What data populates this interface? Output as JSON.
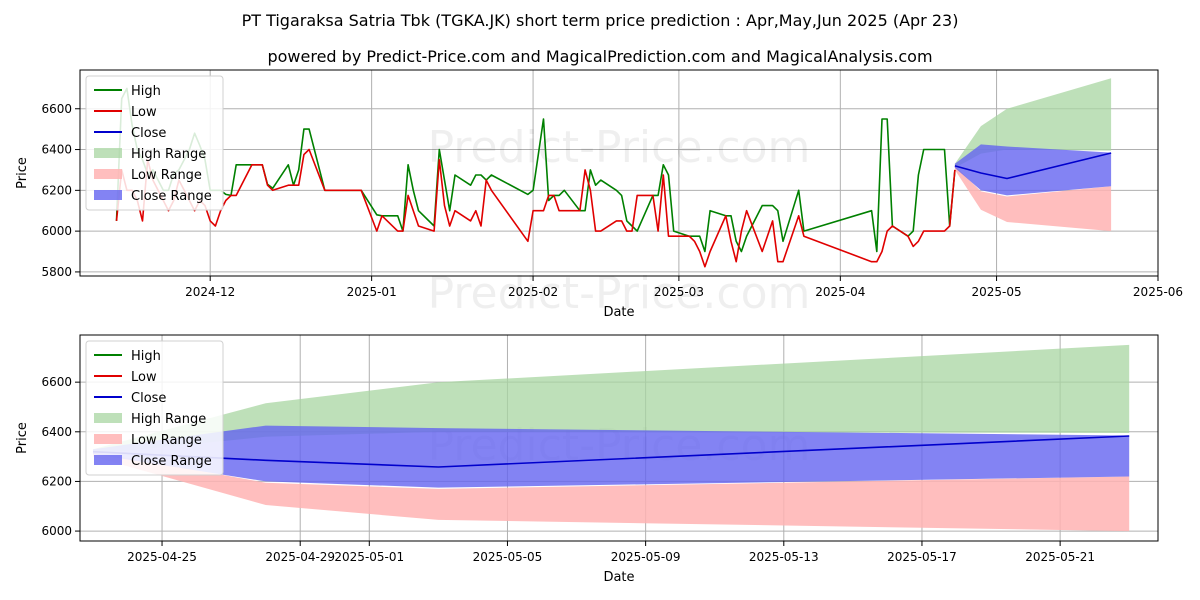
{
  "title": "PT Tigaraksa Satria Tbk (TGKA.JK) short term price prediction : Apr,May,Jun 2025 (Apr 23)",
  "subtitle": "powered by Predict-Price.com and MagicalPrediction.com and MagicalAnalysis.com",
  "watermark": "Predict-Price.com",
  "colors": {
    "high": "#008000",
    "low": "#e00000",
    "close": "#0000cc",
    "high_range": "#a8d5a2",
    "low_range": "#ffb3b3",
    "close_range": "#6464f0"
  },
  "legend": [
    "High",
    "Low",
    "Close",
    "High Range",
    "Low Range",
    "Close Range"
  ],
  "chart_data": [
    {
      "type": "line",
      "xlabel": "Date",
      "ylabel": "Price",
      "xlim": [
        "2024-11-06",
        "2025-06-01"
      ],
      "ylim": [
        5780,
        6790
      ],
      "x_ticks": [
        "2024-12",
        "2025-01",
        "2025-02",
        "2025-03",
        "2025-04",
        "2025-05",
        "2025-06"
      ],
      "y_ticks": [
        5800,
        6000,
        6200,
        6400,
        6600
      ],
      "grid": true,
      "legend_position": "top-left",
      "series": [
        {
          "name": "High",
          "x": [
            "2024-11-13",
            "2024-11-14",
            "2024-11-15",
            "2024-11-16",
            "2024-11-17",
            "2024-11-18",
            "2024-11-19",
            "2024-11-20",
            "2024-11-21",
            "2024-11-22",
            "2024-11-23",
            "2024-11-24",
            "2024-11-25",
            "2024-11-26",
            "2024-11-27",
            "2024-11-28",
            "2024-11-29",
            "2024-11-30",
            "2024-12-01",
            "2024-12-02",
            "2024-12-03",
            "2024-12-04",
            "2024-12-05",
            "2024-12-06",
            "2024-12-09",
            "2024-12-10",
            "2024-12-11",
            "2024-12-12",
            "2024-12-13",
            "2024-12-16",
            "2024-12-17",
            "2024-12-18",
            "2024-12-19",
            "2024-12-20",
            "2024-12-23",
            "2024-12-27",
            "2024-12-30",
            "2025-01-02",
            "2025-01-03",
            "2025-01-06",
            "2025-01-07",
            "2025-01-08",
            "2025-01-09",
            "2025-01-10",
            "2025-01-13",
            "2025-01-14",
            "2025-01-15",
            "2025-01-16",
            "2025-01-17",
            "2025-01-20",
            "2025-01-21",
            "2025-01-22",
            "2025-01-23",
            "2025-01-24",
            "2025-01-31",
            "2025-02-01",
            "2025-02-03",
            "2025-02-04",
            "2025-02-05",
            "2025-02-06",
            "2025-02-07",
            "2025-02-10",
            "2025-02-11",
            "2025-02-12",
            "2025-02-13",
            "2025-02-14",
            "2025-02-17",
            "2025-02-18",
            "2025-02-19",
            "2025-02-20",
            "2025-02-21",
            "2025-02-24",
            "2025-02-25",
            "2025-02-26",
            "2025-02-27",
            "2025-02-28",
            "2025-03-03",
            "2025-03-04",
            "2025-03-05",
            "2025-03-06",
            "2025-03-07",
            "2025-03-10",
            "2025-03-11",
            "2025-03-12",
            "2025-03-13",
            "2025-03-14",
            "2025-03-17",
            "2025-03-18",
            "2025-03-19",
            "2025-03-20",
            "2025-03-21",
            "2025-03-24",
            "2025-03-25",
            "2025-04-07",
            "2025-04-08",
            "2025-04-09",
            "2025-04-10",
            "2025-04-11",
            "2025-04-14",
            "2025-04-15",
            "2025-04-16",
            "2025-04-17",
            "2025-04-21",
            "2025-04-22",
            "2025-04-23"
          ],
          "y": [
            6050,
            6650,
            6700,
            6520,
            6400,
            6350,
            6280,
            6300,
            6250,
            6200,
            6200,
            6280,
            6300,
            6350,
            6400,
            6480,
            6420,
            6350,
            6200,
            6200,
            6200,
            6180,
            6175,
            6325,
            6325,
            6325,
            6325,
            6230,
            6210,
            6325,
            6225,
            6300,
            6500,
            6500,
            6200,
            6200,
            6200,
            6080,
            6075,
            6075,
            6000,
            6325,
            6200,
            6100,
            6025,
            6400,
            6250,
            6100,
            6275,
            6225,
            6275,
            6275,
            6250,
            6275,
            6180,
            6200,
            6550,
            6150,
            6175,
            6175,
            6200,
            6100,
            6100,
            6300,
            6225,
            6250,
            6200,
            6175,
            6050,
            6025,
            6000,
            6175,
            6175,
            6325,
            6275,
            6000,
            5975,
            5975,
            5975,
            5900,
            6100,
            6075,
            6075,
            5950,
            5900,
            5975,
            6125,
            6125,
            6125,
            6100,
            5950,
            6200,
            6000,
            6100,
            5900,
            6550,
            6550,
            6025,
            5975,
            6000,
            6275,
            6400,
            6400,
            6025,
            6300
          ]
        },
        {
          "name": "Low",
          "x": [
            "2024-11-13",
            "2024-11-14",
            "2024-11-15",
            "2024-11-16",
            "2024-11-17",
            "2024-11-18",
            "2024-11-19",
            "2024-11-20",
            "2024-11-21",
            "2024-11-22",
            "2024-11-23",
            "2024-11-24",
            "2024-11-25",
            "2024-11-26",
            "2024-11-27",
            "2024-11-28",
            "2024-11-29",
            "2024-11-30",
            "2024-12-01",
            "2024-12-02",
            "2024-12-03",
            "2024-12-04",
            "2024-12-05",
            "2024-12-06",
            "2024-12-09",
            "2024-12-10",
            "2024-12-11",
            "2024-12-12",
            "2024-12-13",
            "2024-12-16",
            "2024-12-17",
            "2024-12-18",
            "2024-12-19",
            "2024-12-20",
            "2024-12-23",
            "2024-12-27",
            "2024-12-30",
            "2025-01-02",
            "2025-01-03",
            "2025-01-06",
            "2025-01-07",
            "2025-01-08",
            "2025-01-09",
            "2025-01-10",
            "2025-01-13",
            "2025-01-14",
            "2025-01-15",
            "2025-01-16",
            "2025-01-17",
            "2025-01-20",
            "2025-01-21",
            "2025-01-22",
            "2025-01-23",
            "2025-01-24",
            "2025-01-31",
            "2025-02-01",
            "2025-02-03",
            "2025-02-04",
            "2025-02-05",
            "2025-02-06",
            "2025-02-07",
            "2025-02-10",
            "2025-02-11",
            "2025-02-12",
            "2025-02-13",
            "2025-02-14",
            "2025-02-17",
            "2025-02-18",
            "2025-02-19",
            "2025-02-20",
            "2025-02-21",
            "2025-02-24",
            "2025-02-25",
            "2025-02-26",
            "2025-02-27",
            "2025-02-28",
            "2025-03-03",
            "2025-03-04",
            "2025-03-05",
            "2025-03-06",
            "2025-03-07",
            "2025-03-10",
            "2025-03-11",
            "2025-03-12",
            "2025-03-13",
            "2025-03-14",
            "2025-03-17",
            "2025-03-18",
            "2025-03-19",
            "2025-03-20",
            "2025-03-21",
            "2025-03-24",
            "2025-03-25",
            "2025-04-07",
            "2025-04-08",
            "2025-04-09",
            "2025-04-10",
            "2025-04-11",
            "2025-04-14",
            "2025-04-15",
            "2025-04-16",
            "2025-04-17",
            "2025-04-21",
            "2025-04-22",
            "2025-04-23"
          ],
          "y": [
            6050,
            6300,
            6200,
            6200,
            6150,
            6050,
            6350,
            6250,
            6200,
            6150,
            6100,
            6150,
            6250,
            6200,
            6150,
            6100,
            6150,
            6125,
            6050,
            6025,
            6100,
            6150,
            6175,
            6175,
            6325,
            6325,
            6325,
            6225,
            6200,
            6225,
            6225,
            6225,
            6375,
            6400,
            6200,
            6200,
            6200,
            6000,
            6075,
            6000,
            6000,
            6175,
            6100,
            6025,
            6000,
            6350,
            6125,
            6025,
            6100,
            6050,
            6100,
            6025,
            6250,
            6200,
            5950,
            6100,
            6100,
            6175,
            6175,
            6100,
            6100,
            6100,
            6300,
            6200,
            6000,
            6000,
            6050,
            6050,
            6000,
            6000,
            6175,
            6175,
            6000,
            6275,
            5975,
            5975,
            5975,
            5950,
            5900,
            5825,
            5900,
            6075,
            5950,
            5850,
            6000,
            6100,
            5900,
            5975,
            6050,
            5850,
            5850,
            6075,
            5975,
            5850,
            5850,
            5900,
            6000,
            6025,
            5975,
            5925,
            5950,
            6000,
            6000,
            6025,
            6300
          ]
        },
        {
          "name": "Close",
          "x": [
            "2025-04-23",
            "2025-04-28",
            "2025-05-03",
            "2025-05-23"
          ],
          "y": [
            6320,
            6285,
            6258,
            6383
          ]
        }
      ],
      "ranges": [
        {
          "name": "High Range",
          "x": [
            "2025-04-23",
            "2025-04-28",
            "2025-05-03",
            "2025-05-23"
          ],
          "low": [
            6310,
            6380,
            6400,
            6395
          ],
          "high": [
            6330,
            6515,
            6600,
            6750
          ]
        },
        {
          "name": "Low Range",
          "x": [
            "2025-04-23",
            "2025-04-28",
            "2025-05-03",
            "2025-05-23"
          ],
          "low": [
            6300,
            6105,
            6045,
            6000
          ],
          "high": [
            6320,
            6195,
            6170,
            6220
          ]
        },
        {
          "name": "Close Range",
          "x": [
            "2025-04-23",
            "2025-04-28",
            "2025-05-03",
            "2025-05-23"
          ],
          "low": [
            6310,
            6200,
            6175,
            6220
          ],
          "high": [
            6330,
            6425,
            6415,
            6385
          ]
        }
      ]
    },
    {
      "type": "line",
      "xlabel": "Date",
      "ylabel": "Price",
      "xlim": [
        "2025-04-22 15:00",
        "2025-05-23 20:00"
      ],
      "ylim": [
        5960,
        6790
      ],
      "x_ticks": [
        "2025-04-25",
        "2025-04-29",
        "2025-05-01",
        "2025-05-05",
        "2025-05-09",
        "2025-05-13",
        "2025-05-17",
        "2025-05-21"
      ],
      "y_ticks": [
        6000,
        6200,
        6400,
        6600
      ],
      "grid": true,
      "legend_position": "top-left",
      "series": [
        {
          "name": "High",
          "x": [],
          "y": []
        },
        {
          "name": "Low",
          "x": [],
          "y": []
        },
        {
          "name": "Close",
          "x": [
            "2025-04-23",
            "2025-04-28",
            "2025-05-03",
            "2025-05-23"
          ],
          "y": [
            6320,
            6285,
            6258,
            6383
          ]
        }
      ],
      "ranges": [
        {
          "name": "High Range",
          "x": [
            "2025-04-23",
            "2025-04-28",
            "2025-05-03",
            "2025-05-23"
          ],
          "low": [
            6310,
            6380,
            6400,
            6395
          ],
          "high": [
            6330,
            6515,
            6600,
            6750
          ]
        },
        {
          "name": "Low Range",
          "x": [
            "2025-04-23",
            "2025-04-28",
            "2025-05-03",
            "2025-05-23"
          ],
          "low": [
            6300,
            6105,
            6045,
            6000
          ],
          "high": [
            6320,
            6195,
            6170,
            6220
          ]
        },
        {
          "name": "Close Range",
          "x": [
            "2025-04-23",
            "2025-04-28",
            "2025-05-03",
            "2025-05-23"
          ],
          "low": [
            6310,
            6200,
            6175,
            6220
          ],
          "high": [
            6330,
            6425,
            6415,
            6385
          ]
        }
      ]
    }
  ]
}
